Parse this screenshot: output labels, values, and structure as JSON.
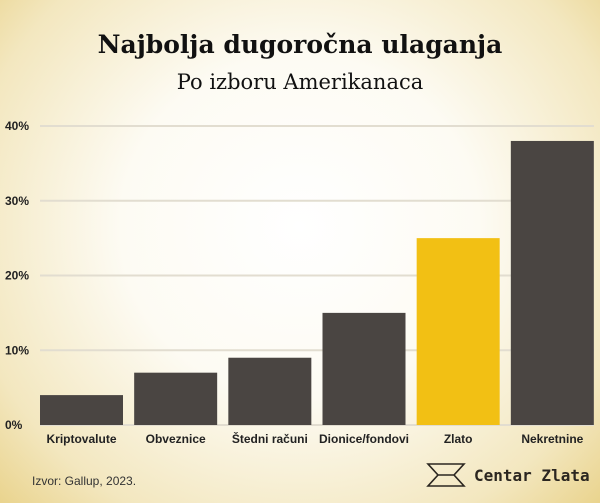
{
  "chart_data": {
    "type": "bar",
    "title": "Najbolja dugoročna ulaganja",
    "subtitle": "Po izboru Amerikanaca",
    "categories": [
      "Kriptovalute",
      "Obveznice",
      "Štedni računi",
      "Dionice/fondovi",
      "Zlato",
      "Nekretnine"
    ],
    "values": [
      4,
      7,
      9,
      15,
      25,
      38
    ],
    "colors": [
      "#4a4542",
      "#4a4542",
      "#4a4542",
      "#4a4542",
      "#f2c014",
      "#4a4542"
    ],
    "ylim": [
      0,
      40
    ],
    "yticks": [
      0,
      10,
      20,
      30,
      40
    ],
    "ytick_labels": [
      "0%",
      "10%",
      "20%",
      "30%",
      "40%"
    ],
    "xlabel": "",
    "ylabel": "",
    "grid": true
  },
  "source": "Izvor: Gallup, 2023.",
  "brand": "Centar Zlata"
}
